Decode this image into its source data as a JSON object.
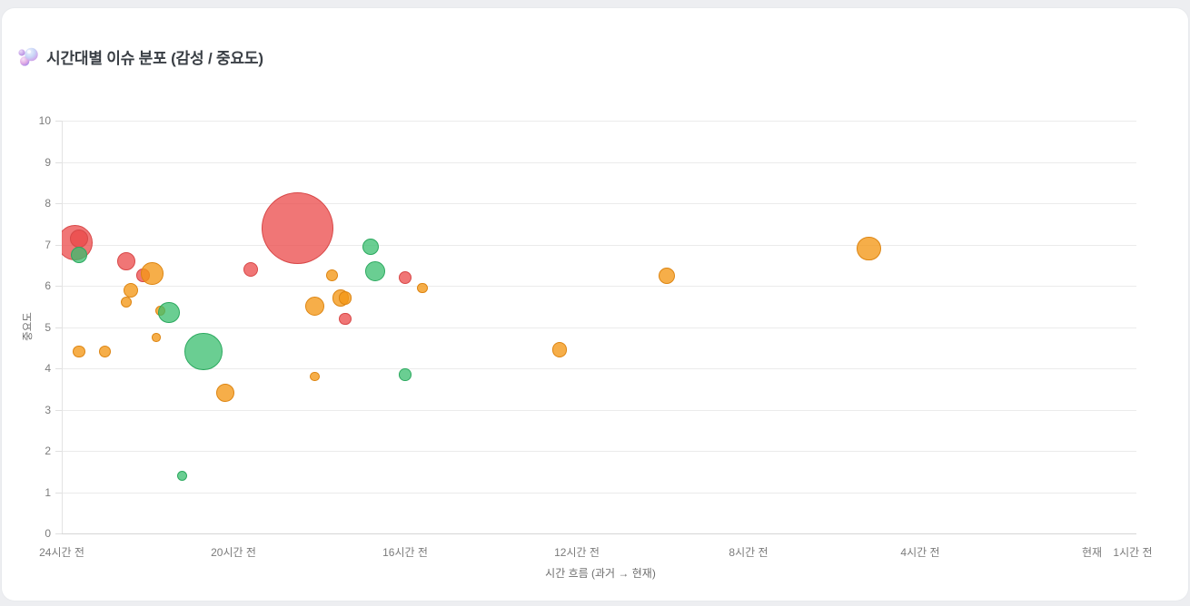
{
  "header": {
    "title": "시간대별 이슈 분포 (감성 / 중요도)",
    "icon": "bubbles-icon"
  },
  "chart_data": {
    "type": "bubble",
    "title": "시간대별 이슈 분포 (감성 / 중요도)",
    "xlabel": "시간 흐름 (과거 → 현재)",
    "ylabel": "중요도",
    "ylim": [
      0,
      10
    ],
    "y_ticks": [
      0,
      1,
      2,
      3,
      4,
      5,
      6,
      7,
      8,
      9,
      10
    ],
    "x_ticks": [
      {
        "label": "24시간 전",
        "hours_ago": 24
      },
      {
        "label": "20시간 전",
        "hours_ago": 20
      },
      {
        "label": "16시간 전",
        "hours_ago": 16
      },
      {
        "label": "12시간 전",
        "hours_ago": 12
      },
      {
        "label": "8시간 전",
        "hours_ago": 8
      },
      {
        "label": "4시간 전",
        "hours_ago": 4
      },
      {
        "label": "현재",
        "hours_ago": 0
      },
      {
        "label": "1시간 전",
        "hours_ago": null
      }
    ],
    "grid": "horizontal-only",
    "legend": "none",
    "colors": {
      "red": {
        "fill": "rgba(235,72,72,0.75)",
        "border": "#d84848"
      },
      "orange": {
        "fill": "rgba(244,151,22,0.78)",
        "border": "#dd8512"
      },
      "green": {
        "fill": "rgba(56,190,110,0.75)",
        "border": "#2ca95f"
      }
    },
    "points": [
      {
        "hours_ago": 23.7,
        "importance": 7.05,
        "radius": 19.5,
        "color": "red"
      },
      {
        "hours_ago": 23.6,
        "importance": 7.15,
        "radius": 10.0,
        "color": "red"
      },
      {
        "hours_ago": 23.6,
        "importance": 6.75,
        "radius": 9.0,
        "color": "green"
      },
      {
        "hours_ago": 23.6,
        "importance": 4.4,
        "radius": 6.7,
        "color": "orange"
      },
      {
        "hours_ago": 23.0,
        "importance": 4.4,
        "radius": 6.7,
        "color": "orange"
      },
      {
        "hours_ago": 22.5,
        "importance": 6.6,
        "radius": 10.0,
        "color": "red"
      },
      {
        "hours_ago": 22.4,
        "importance": 5.9,
        "radius": 8.0,
        "color": "orange"
      },
      {
        "hours_ago": 22.5,
        "importance": 5.6,
        "radius": 6.0,
        "color": "orange"
      },
      {
        "hours_ago": 22.1,
        "importance": 6.25,
        "radius": 7.3,
        "color": "red"
      },
      {
        "hours_ago": 21.9,
        "importance": 6.3,
        "radius": 12.3,
        "color": "orange"
      },
      {
        "hours_ago": 21.8,
        "importance": 4.75,
        "radius": 4.7,
        "color": "orange"
      },
      {
        "hours_ago": 21.7,
        "importance": 5.4,
        "radius": 5.7,
        "color": "orange"
      },
      {
        "hours_ago": 21.5,
        "importance": 5.35,
        "radius": 11.7,
        "color": "green"
      },
      {
        "hours_ago": 21.2,
        "importance": 1.4,
        "radius": 5.7,
        "color": "green"
      },
      {
        "hours_ago": 20.7,
        "importance": 4.4,
        "radius": 20.7,
        "color": "green"
      },
      {
        "hours_ago": 20.2,
        "importance": 3.4,
        "radius": 10.0,
        "color": "orange"
      },
      {
        "hours_ago": 19.6,
        "importance": 6.4,
        "radius": 8.0,
        "color": "red"
      },
      {
        "hours_ago": 18.5,
        "importance": 7.4,
        "radius": 39.5,
        "color": "red"
      },
      {
        "hours_ago": 18.1,
        "importance": 5.5,
        "radius": 10.7,
        "color": "orange"
      },
      {
        "hours_ago": 18.1,
        "importance": 3.8,
        "radius": 5.3,
        "color": "orange"
      },
      {
        "hours_ago": 17.7,
        "importance": 6.25,
        "radius": 6.7,
        "color": "orange"
      },
      {
        "hours_ago": 17.5,
        "importance": 5.7,
        "radius": 9.3,
        "color": "orange"
      },
      {
        "hours_ago": 17.4,
        "importance": 5.7,
        "radius": 7.3,
        "color": "orange"
      },
      {
        "hours_ago": 17.4,
        "importance": 5.2,
        "radius": 6.7,
        "color": "red"
      },
      {
        "hours_ago": 16.8,
        "importance": 6.95,
        "radius": 9.0,
        "color": "green"
      },
      {
        "hours_ago": 16.7,
        "importance": 6.35,
        "radius": 11.0,
        "color": "green"
      },
      {
        "hours_ago": 16.0,
        "importance": 6.2,
        "radius": 7.3,
        "color": "red"
      },
      {
        "hours_ago": 15.6,
        "importance": 5.95,
        "radius": 5.7,
        "color": "orange"
      },
      {
        "hours_ago": 16.0,
        "importance": 3.85,
        "radius": 6.7,
        "color": "green"
      },
      {
        "hours_ago": 12.4,
        "importance": 4.45,
        "radius": 8.3,
        "color": "orange"
      },
      {
        "hours_ago": 9.9,
        "importance": 6.25,
        "radius": 9.0,
        "color": "orange"
      },
      {
        "hours_ago": 5.2,
        "importance": 6.9,
        "radius": 13.3,
        "color": "orange"
      }
    ]
  }
}
